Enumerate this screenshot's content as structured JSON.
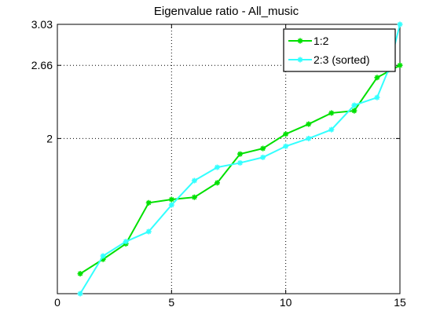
{
  "chart_data": {
    "type": "line",
    "title": "Eigenvalue ratio - All_music",
    "xlabel": "",
    "ylabel": "",
    "xlim": [
      0,
      15
    ],
    "ylim": [
      0.6,
      3.03
    ],
    "xticks": [
      0,
      5,
      10,
      15
    ],
    "yticks": [
      2,
      2.66,
      3.03
    ],
    "ytick_labels": [
      "2",
      "2.66",
      "3.03"
    ],
    "grid": "dotted",
    "legend_position": "top-right",
    "series": [
      {
        "name": "1:2",
        "color": "#00e000",
        "marker": "star",
        "x": [
          1,
          2,
          3,
          4,
          5,
          6,
          7,
          8,
          9,
          10,
          11,
          12,
          13,
          14,
          15
        ],
        "y": [
          0.78,
          0.91,
          1.05,
          1.42,
          1.45,
          1.47,
          1.6,
          1.86,
          1.91,
          2.04,
          2.13,
          2.23,
          2.25,
          2.55,
          2.66
        ]
      },
      {
        "name": "2:3 (sorted)",
        "color": "#33ffff",
        "marker": "star",
        "x": [
          1,
          2,
          3,
          4,
          5,
          6,
          7,
          8,
          9,
          10,
          11,
          12,
          13,
          14,
          14.5,
          15
        ],
        "y": [
          0.6,
          0.94,
          1.07,
          1.16,
          1.4,
          1.62,
          1.74,
          1.78,
          1.83,
          1.93,
          2.0,
          2.08,
          2.3,
          2.37,
          2.62,
          3.03
        ]
      }
    ]
  }
}
